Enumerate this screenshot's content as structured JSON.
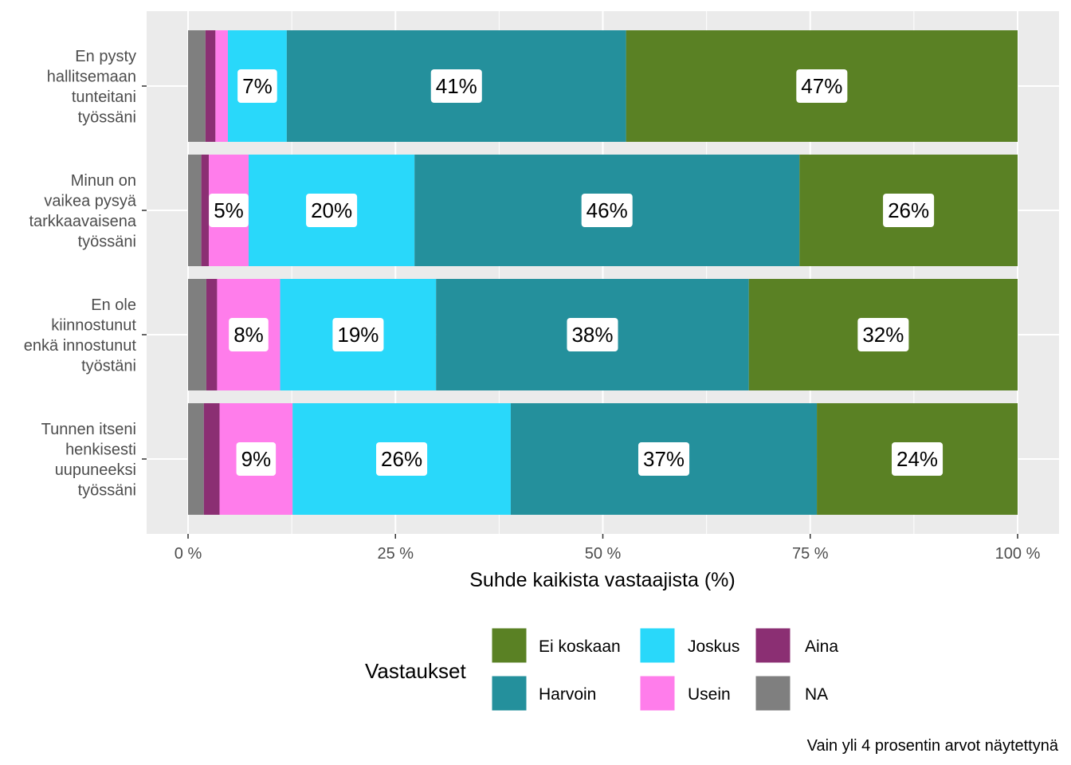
{
  "chart_data": {
    "type": "bar",
    "orientation": "horizontal",
    "stacked": true,
    "xlabel": "Suhde kaikista vastaajista (%)",
    "xlim": [
      0,
      100
    ],
    "xticks": [
      0,
      25,
      50,
      75,
      100
    ],
    "xtick_labels": [
      "0 %",
      "25 %",
      "50 %",
      "75 %",
      "100 %"
    ],
    "categories": [
      [
        "En pysty",
        "hallitsemaan",
        "tunteitani",
        "työssäni"
      ],
      [
        "Minun on",
        "vaikea pysyä",
        "tarkkaavaisena",
        "työssäni"
      ],
      [
        "En ole",
        "kiinnostunut",
        "enkä innostunut",
        "työstäni"
      ],
      [
        "Tunnen itseni",
        "henkisesti",
        "uupuneeksi",
        "työssäni"
      ]
    ],
    "series": [
      {
        "name": "NA",
        "color": "#7F7F7F",
        "values": [
          2.1,
          1.6,
          2.2,
          1.9
        ]
      },
      {
        "name": "Aina",
        "color": "#8B2F73",
        "values": [
          1.2,
          0.9,
          1.3,
          1.9
        ]
      },
      {
        "name": "Usein",
        "color": "#FF7DEB",
        "values": [
          1.5,
          4.8,
          7.6,
          8.8
        ]
      },
      {
        "name": "Joskus",
        "color": "#29D8FA",
        "values": [
          7.1,
          20.0,
          18.8,
          26.3
        ]
      },
      {
        "name": "Harvoin",
        "color": "#24909C",
        "values": [
          40.9,
          46.4,
          37.7,
          36.9
        ]
      },
      {
        "name": "Ei koskaan",
        "color": "#5A8124",
        "values": [
          47.2,
          26.3,
          32.4,
          24.2
        ]
      }
    ],
    "data_labels": [
      [
        null,
        null,
        null,
        "7%",
        "41%",
        "47%"
      ],
      [
        null,
        null,
        "5%",
        "20%",
        "46%",
        "26%"
      ],
      [
        null,
        null,
        "8%",
        "19%",
        "38%",
        "32%"
      ],
      [
        null,
        null,
        "9%",
        "26%",
        "37%",
        "24%"
      ]
    ],
    "legend": {
      "title": "Vastaukset",
      "position": "bottom",
      "entries": [
        {
          "name": "Ei koskaan",
          "color": "#5A8124"
        },
        {
          "name": "Harvoin",
          "color": "#24909C"
        },
        {
          "name": "Joskus",
          "color": "#29D8FA"
        },
        {
          "name": "Usein",
          "color": "#FF7DEB"
        },
        {
          "name": "Aina",
          "color": "#8B2F73"
        },
        {
          "name": "NA",
          "color": "#7F7F7F"
        }
      ]
    },
    "caption": "Vain yli 4 prosentin arvot näytettynä",
    "grid": true,
    "panel_background": "#EBEBEB"
  }
}
